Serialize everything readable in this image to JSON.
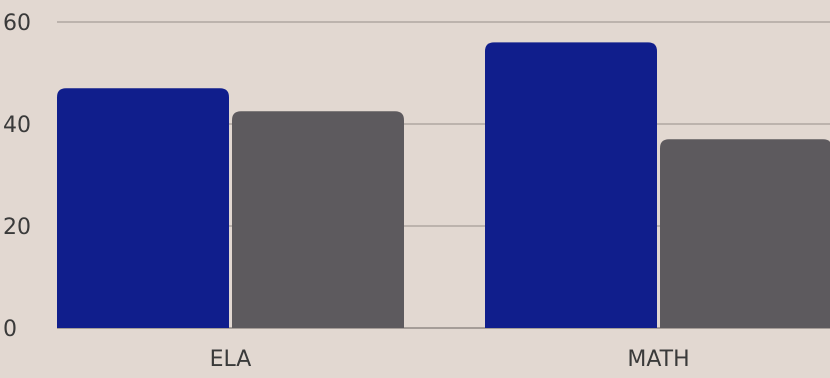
{
  "chart_data": {
    "type": "bar",
    "categories": [
      "ELA",
      "MATH"
    ],
    "series": [
      {
        "values": [
          47,
          56
        ]
      },
      {
        "values": [
          42.5,
          37
        ]
      }
    ],
    "ylim": [
      0,
      60
    ],
    "yticks": [
      0,
      20,
      40,
      60
    ],
    "grid": true,
    "colors": [
      "#101e8c",
      "#5d5a5e"
    ],
    "background": "#e2d8d1",
    "gridline_color": "#a59d98"
  }
}
